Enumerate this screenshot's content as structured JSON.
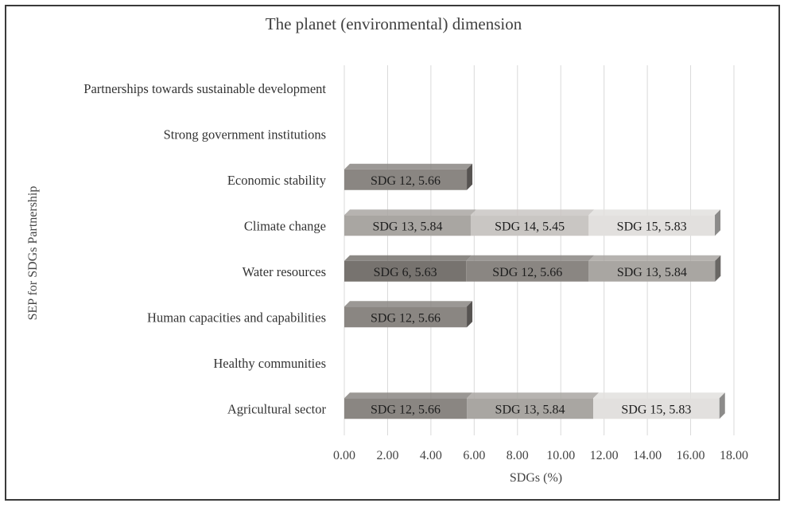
{
  "chart_data": {
    "type": "bar",
    "orientation": "horizontal",
    "stacked": true,
    "title": "The planet (environmental) dimension",
    "xlabel": "SDGs (%)",
    "ylabel": "SEP for SDGs Partnership",
    "xlim": [
      0,
      18
    ],
    "xticks": [
      "0.00",
      "2.00",
      "4.00",
      "6.00",
      "8.00",
      "10.00",
      "12.00",
      "14.00",
      "16.00",
      "18.00"
    ],
    "grid": "vertical",
    "categories": [
      "Agricultural sector",
      "Healthy communities",
      "Human capacities and capabilities",
      "Water resources",
      "Climate change",
      "Economic stability",
      "Strong government institutions",
      "Partnerships towards sustainable development"
    ],
    "segments": [
      [
        {
          "label": "SDG 12, 5.66",
          "value": 5.66,
          "color": "#8a8682"
        },
        {
          "label": "SDG 13, 5.84",
          "value": 5.84,
          "color": "#a9a6a2"
        },
        {
          "label": "SDG 15, 5.83",
          "value": 5.83,
          "color": "#e2e0de"
        }
      ],
      [],
      [
        {
          "label": "SDG 12, 5.66",
          "value": 5.66,
          "color": "#8a8682"
        }
      ],
      [
        {
          "label": "SDG 6, 5.63",
          "value": 5.63,
          "color": "#77736f"
        },
        {
          "label": "SDG 12, 5.66",
          "value": 5.66,
          "color": "#8a8682"
        },
        {
          "label": "SDG 13, 5.84",
          "value": 5.84,
          "color": "#a9a6a2"
        }
      ],
      [
        {
          "label": "SDG 13, 5.84",
          "value": 5.84,
          "color": "#a9a6a2"
        },
        {
          "label": "SDG 14, 5.45",
          "value": 5.45,
          "color": "#c9c6c3"
        },
        {
          "label": "SDG 15, 5.83",
          "value": 5.83,
          "color": "#e2e0de"
        }
      ],
      [
        {
          "label": "SDG 12, 5.66",
          "value": 5.66,
          "color": "#8a8682"
        }
      ],
      [],
      []
    ]
  }
}
